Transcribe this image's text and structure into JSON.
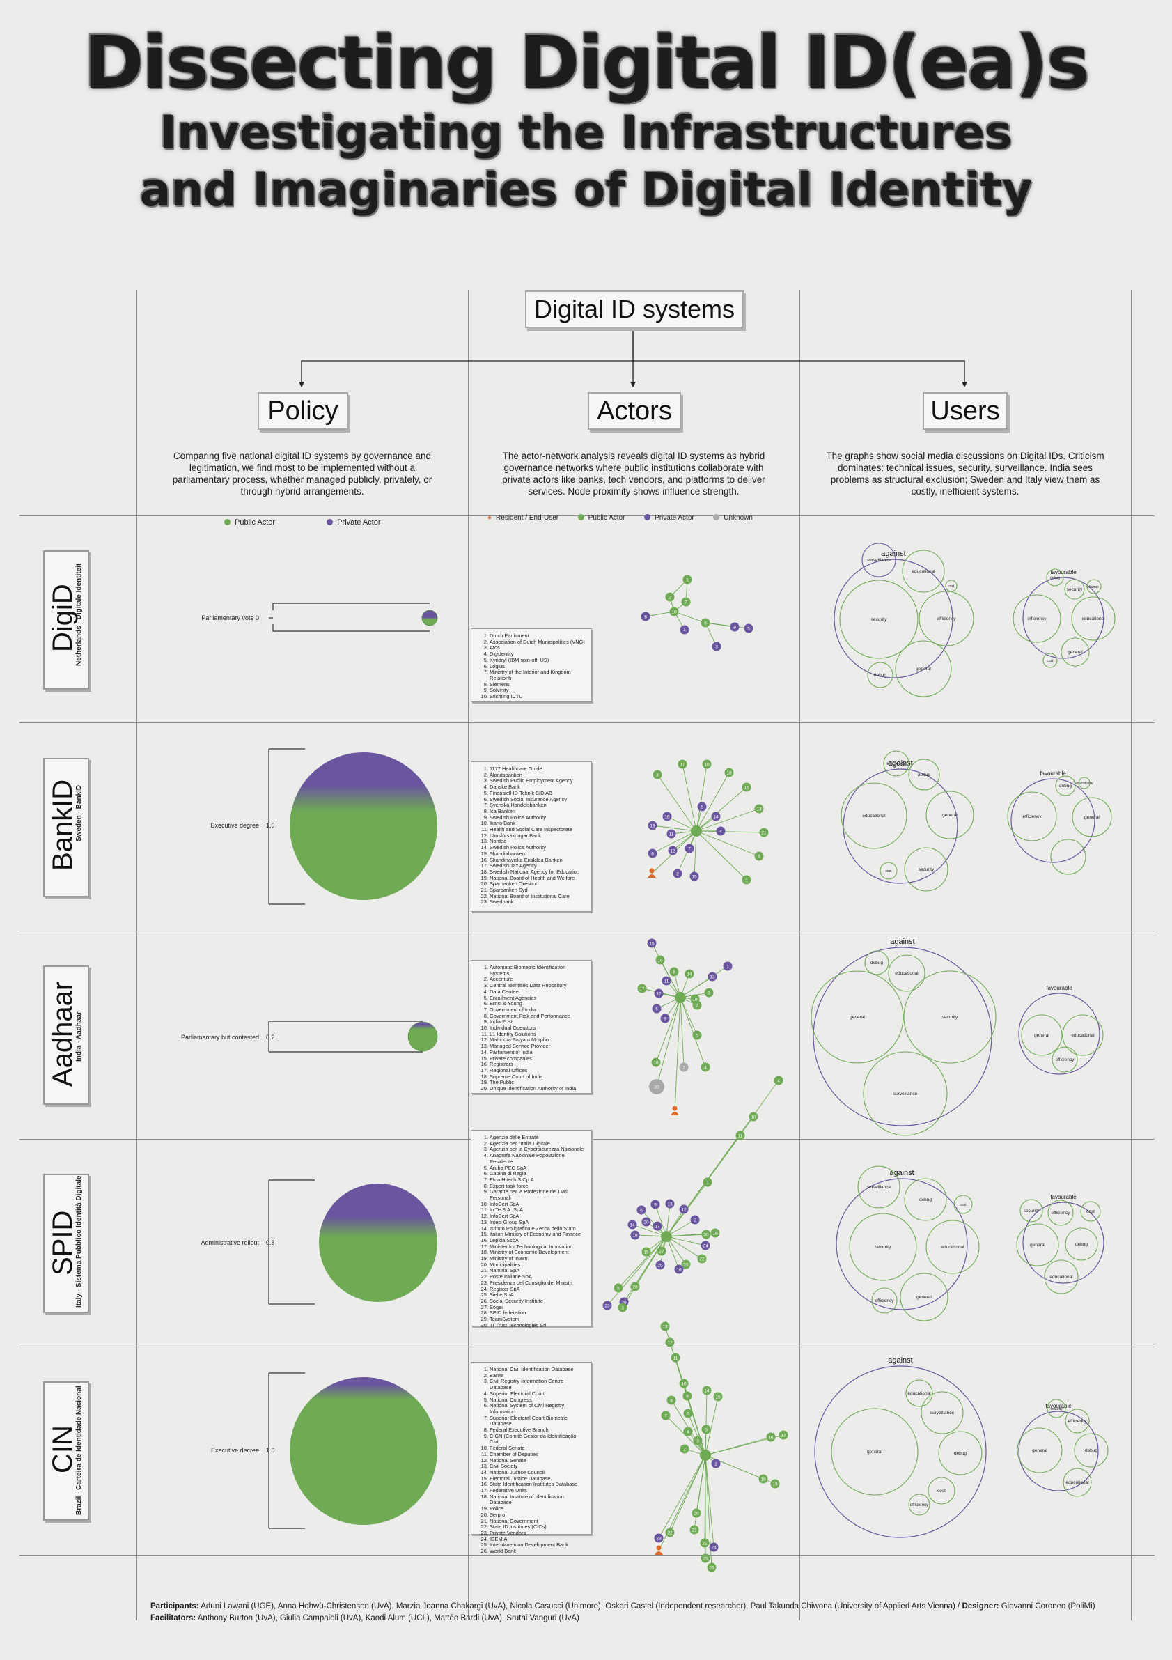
{
  "title": {
    "main": "Dissecting Digital ID(ea)s",
    "sub1": "Investigating the Infrastructures",
    "sub2": "and Imaginaries of Digital Identity"
  },
  "header": {
    "label": "Digital ID systems"
  },
  "columns": [
    {
      "label": "Policy",
      "description": "Comparing five national digital ID systems by governance and legitimation, we find most to be implemented without a parliamentary process, whether managed publicly, privately, or through hybrid arrangements."
    },
    {
      "label": "Actors",
      "description": "The actor-network analysis reveals digital ID systems as hybrid governance networks where public institutions collaborate with private actors like banks, tech vendors, and platforms to deliver services. Node proximity shows influence strength."
    },
    {
      "label": "Users",
      "description": "The graphs show social media discussions on Digital IDs. Criticism dominates: technical issues, security, surveillance. India sees problems as structural exclusion; Sweden and Italy view them as costly, inefficient systems."
    }
  ],
  "legends": {
    "policy": [
      {
        "label": "Public Actor",
        "color": "#6faa55"
      },
      {
        "label": "Private Actor",
        "color": "#6a559f"
      }
    ],
    "actors": [
      {
        "label": "Resident / End-User",
        "color": "#e06a2c"
      },
      {
        "label": "Public Actor",
        "color": "#6faa55"
      },
      {
        "label": "Private Actor",
        "color": "#6a559f"
      },
      {
        "label": "Unknown",
        "color": "#aaaaaa"
      }
    ]
  },
  "colors": {
    "public": "#6faa55",
    "private": "#6a559f",
    "user": "#e06a2c",
    "unknown": "#a8a8a8"
  },
  "rows": [
    {
      "name": "DigiD",
      "subtitle": "Netherlands - Digitale Identiteit",
      "policy": {
        "label": "Parliamentary vote",
        "value": "0",
        "private_share": 0.5
      },
      "actors": [
        "Dutch Parliament",
        "Association of Dutch Municipalities (VNG)",
        "Atos",
        "Digidentity",
        "Kyndryl (IBM spin-off, US)",
        "Logius",
        "Ministry of the Interior and Kingdom Relationh",
        "Siemens",
        "Solvinity",
        "Stichting ICTU"
      ],
      "users": {
        "against": {
          "label": "against",
          "bubbles": [
            "surveillance",
            "educational",
            "cost",
            "security",
            "efficiency",
            "debug",
            "general"
          ]
        },
        "favourable": {
          "label": "favourable",
          "bubbles": [
            "debug",
            "security",
            "humor",
            "efficiency",
            "educational",
            "general",
            "cost"
          ]
        }
      }
    },
    {
      "name": "BankID",
      "subtitle": "Sweden - BankID",
      "policy": {
        "label": "Executive degree",
        "value": "1.0",
        "private_share": 0.35
      },
      "actors": [
        "1177 Healthcare Guide",
        "Ålandsbanken",
        "Swedish Public Employment Agency",
        "Danske Bank",
        "Finansiell ID-Teknik BID AB",
        "Swedish Social Insurance Agency",
        "Svenska Handelsbanken",
        "Ica Banken",
        "Swedish Police Authority",
        "Ikano Bank",
        "Health and Social Care Inspectorate",
        "Länsförsäkringar Bank",
        "Nordea",
        "Swedish Police Authority",
        "Skandiabanken",
        "Skandinaviska Enskilda Banken",
        "Swedish Tax Agency",
        "Swedish National Agency for Education",
        "National Board of Health and Welfare",
        "Sparbanken Öresund",
        "Sparbanken Syd",
        "National Board of Institutional Care",
        "Swedbank"
      ],
      "users": {
        "against": {
          "label": "against",
          "bubbles": [
            "efficiency",
            "debug",
            "educational",
            "general",
            "cost",
            "security"
          ]
        },
        "favourable": {
          "label": "favourable",
          "bubbles": [
            "debug",
            "educational",
            "efficiency",
            "general"
          ]
        }
      }
    },
    {
      "name": "Aadhaar",
      "subtitle": "India - Aadhaar",
      "policy": {
        "label": "Parliamentary but contested",
        "value": "0.2",
        "private_share": 0.12
      },
      "actors": [
        "Automatic Biometric Identification Systems",
        "Accenture",
        "Central Identities Data Repository",
        "Data Centers",
        "Enrollment Agencies",
        "Ernst & Young",
        "Government of India",
        "Government Risk and Performance",
        "India Post",
        "Individual Operators",
        "L1 Identity Solutions",
        "Mahindra Satyam Morpho",
        "Managed Service Provider",
        "Parliament of India",
        "Private companies",
        "Registrars",
        "Regional Offices",
        "Supreme Court of India",
        "The Public",
        "Unique Identification Authority of India"
      ],
      "users": {
        "against": {
          "label": "against",
          "bubbles": [
            "debug",
            "educational",
            "general",
            "security",
            "surveillance"
          ]
        },
        "favourable": {
          "label": "favourable",
          "bubbles": [
            "general",
            "educational",
            "efficiency"
          ]
        }
      }
    },
    {
      "name": "SPID",
      "subtitle": "Italy - Sistema Pubblico Identità Digitale",
      "policy": {
        "label": "Administrative rollout",
        "value": "0.8",
        "private_share": 0.4
      },
      "actors": [
        "Agenzia delle Entrate",
        "Agenzia per l'Italia Digitale",
        "Agenzia per la Cybersicurezza Nazionale",
        "Anagrafe Nazionale Popolazione Residente",
        "Aruba PEC SpA",
        "Cabina di Regia",
        "Etna Hitech S.Cp.A.",
        "Expert task force",
        "Garante per la Protezione dei Dati Personali",
        "InfoCert SpA",
        "In.Te.S.A. SpA",
        "InfoCert SpA",
        "Intesi Group SpA",
        "Istituto Poligrafico e Zecca dello Stato",
        "Italian Ministry of Economy and Finance",
        "Lepida ScpA",
        "Minister for Technological Innovation",
        "Ministry of Economic Development",
        "Ministry of Intern",
        "Municipalities",
        "Namirial SpA",
        "Poste Italiane SpA",
        "Presidenza del Consiglio dei Ministri",
        "Register SpA",
        "Sielte SpA",
        "Social Security Institute",
        "Sogei",
        "SPID federation",
        "TeamSystem",
        "TI Trust Technologies Srl"
      ],
      "users": {
        "against": {
          "label": "against",
          "bubbles": [
            "surveillance",
            "debug",
            "cost",
            "security",
            "educational",
            "efficiency",
            "general"
          ]
        },
        "favourable": {
          "label": "favourable",
          "bubbles": [
            "security",
            "efficiency",
            "cost",
            "general",
            "debug",
            "educational"
          ]
        }
      }
    },
    {
      "name": "CIN",
      "subtitle": "Brazil - Carteira de Identidade Nacional",
      "policy": {
        "label": "Executive decree",
        "value": "1.0",
        "private_share": 0.1
      },
      "actors": [
        "National Civil Identification Database",
        "Banks",
        "Civil Registry Information Centre Database",
        "Superior Electoral Court",
        "National Congress",
        "National System of Civil Registry Information",
        "Superior Electoral Court Biometric Database",
        "Federal Executive Branch",
        "CIGN (Comitê Gestor da Identificação Civil",
        "Federal Senate",
        "Chamber of Deputies",
        "National Senate",
        "Civil Society",
        "National Justice Council",
        "Electoral Justice Database",
        "State Identification Institutes Database",
        "Federative Units",
        "National Institute of Identification Database",
        "Police",
        "Serpro",
        "National Government",
        "State ID Institutes (CICs)",
        "Private Vendors",
        "IDEMIA",
        "Inter-American Development Bank",
        "World Bank"
      ],
      "users": {
        "against": {
          "label": "against",
          "bubbles": [
            "educational",
            "surveillance",
            "general",
            "debug",
            "cost",
            "efficiency"
          ]
        },
        "favourable": {
          "label": "favourable",
          "bubbles": [
            "security",
            "efficiency",
            "general",
            "debug",
            "educational"
          ]
        }
      }
    }
  ],
  "footer": {
    "participants_label": "Participants:",
    "participants": "Aduni Lawani (UGE), Anna Hohwü-Christensen (UvA), Marzia Joanna Chakargi (UvA), Nicola Casucci (Unimore), Oskari Castel (Independent researcher), Paul Takunda Chiwona (University of Applied Arts Vienna) /",
    "designer_label": "Designer:",
    "designer": "Giovanni Coroneo (PoliMi)",
    "facilitators_label": "Facilitators:",
    "facilitators": "Anthony Burton (UvA), Giulia Campaioli (UvA), Kaodi Alum (UCL), Mattéo Bardi (UvA), Sruthi Vanguri (UvA)"
  }
}
